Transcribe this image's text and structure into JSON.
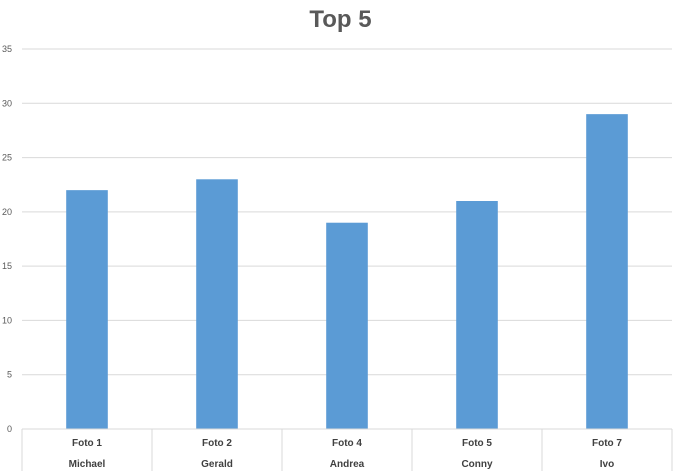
{
  "chart_data": {
    "type": "bar",
    "title": "Top 5",
    "categories": [
      "Foto 1",
      "Foto 2",
      "Foto 4",
      "Foto 5",
      "Foto 7"
    ],
    "subcategories": [
      "Michael",
      "Gerald",
      "Andrea",
      "Conny",
      "Ivo"
    ],
    "values": [
      22,
      23,
      19,
      21,
      29
    ],
    "ylim": [
      0,
      35
    ],
    "yticks": [
      0,
      5,
      10,
      15,
      20,
      25,
      30,
      35
    ],
    "grid": true,
    "legend": "none",
    "xlabel": "",
    "ylabel": "",
    "bar_color": "#5b9bd5",
    "grid_color": "#d9d9d9"
  }
}
